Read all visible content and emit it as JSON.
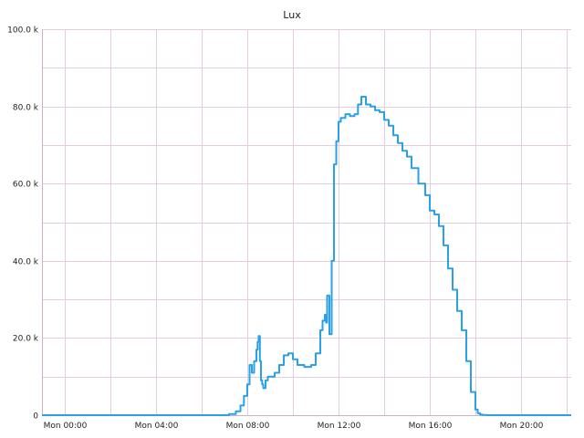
{
  "chart_data": {
    "type": "line",
    "title": "Lux",
    "xlabel": "",
    "ylabel": "",
    "grid": true,
    "legend": "none",
    "x_unit": "hours",
    "xlim": [
      -1,
      22.2
    ],
    "ylim": [
      0,
      100000
    ],
    "yticks": [
      {
        "value": 0,
        "label": "0"
      },
      {
        "value": 20000,
        "label": "20.0 k"
      },
      {
        "value": 40000,
        "label": "40.0 k"
      },
      {
        "value": 60000,
        "label": "60.0 k"
      },
      {
        "value": 80000,
        "label": "80.0 k"
      },
      {
        "value": 100000,
        "label": "100.0 k"
      }
    ],
    "xticks": [
      {
        "value": 0,
        "label": "Mon 00:00"
      },
      {
        "value": 4,
        "label": "Mon 04:00"
      },
      {
        "value": 8,
        "label": "Mon 08:00"
      },
      {
        "value": 12,
        "label": "Mon 12:00"
      },
      {
        "value": 16,
        "label": "Mon 16:00"
      },
      {
        "value": 20,
        "label": "Mon 20:00"
      }
    ],
    "minor_xgrid": [
      2,
      6,
      10,
      14,
      18,
      22
    ],
    "series": [
      {
        "color": "#2aa1e6",
        "x": [
          -1,
          6.8,
          7.2,
          7.5,
          7.7,
          7.85,
          8.0,
          8.1,
          8.2,
          8.3,
          8.4,
          8.45,
          8.5,
          8.55,
          8.6,
          8.65,
          8.7,
          8.8,
          8.9,
          9.0,
          9.2,
          9.4,
          9.6,
          9.8,
          10.0,
          10.2,
          10.5,
          10.8,
          11.0,
          11.2,
          11.3,
          11.4,
          11.45,
          11.5,
          11.6,
          11.7,
          11.8,
          11.9,
          12.0,
          12.1,
          12.3,
          12.5,
          12.7,
          12.85,
          13.0,
          13.2,
          13.4,
          13.6,
          13.8,
          14.0,
          14.2,
          14.4,
          14.6,
          14.8,
          15.0,
          15.2,
          15.5,
          15.8,
          16.0,
          16.2,
          16.4,
          16.6,
          16.8,
          17.0,
          17.2,
          17.4,
          17.6,
          17.8,
          18.0,
          18.1,
          18.2,
          18.3,
          18.5,
          19.0,
          20.0,
          22.2
        ],
        "y": [
          0,
          0,
          300,
          1000,
          2500,
          5000,
          8000,
          13000,
          11000,
          14000,
          17000,
          19000,
          20500,
          14000,
          9000,
          8000,
          7000,
          9000,
          10000,
          10000,
          11000,
          13000,
          15500,
          16000,
          14500,
          13000,
          12500,
          13000,
          16000,
          22000,
          24500,
          26000,
          24000,
          31000,
          21000,
          40000,
          65000,
          71000,
          76000,
          77000,
          78000,
          77500,
          78000,
          80500,
          82500,
          80500,
          80000,
          79000,
          78500,
          76500,
          75000,
          72500,
          70500,
          68500,
          67000,
          64000,
          60000,
          57000,
          53000,
          52000,
          49000,
          44000,
          38000,
          32500,
          27000,
          22000,
          14000,
          6000,
          1500,
          500,
          200,
          50,
          0,
          0,
          0,
          0
        ]
      }
    ]
  }
}
